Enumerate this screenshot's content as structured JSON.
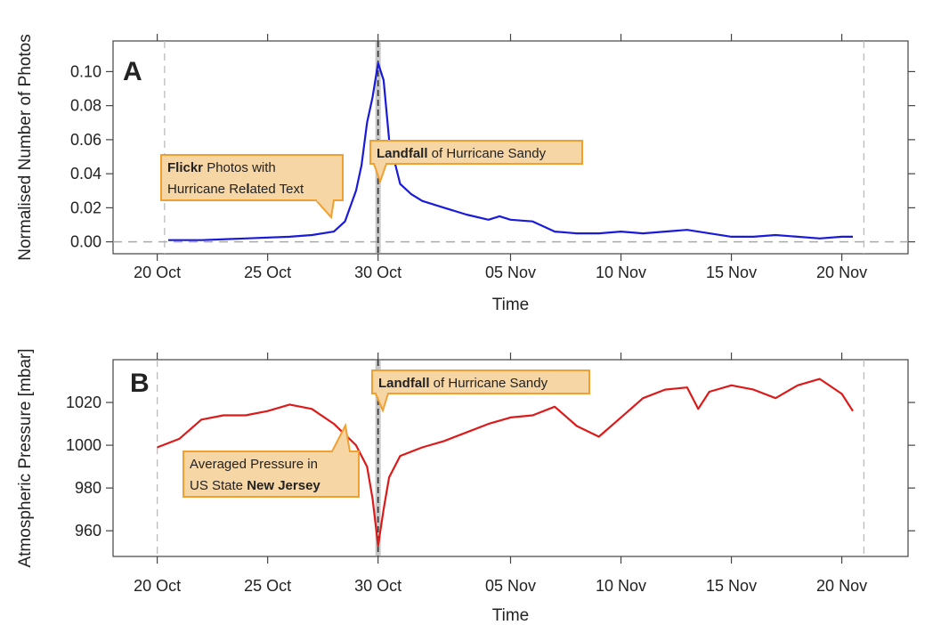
{
  "chart_data": [
    {
      "type": "line",
      "panel_label": "A",
      "xlabel": "Time",
      "ylabel": "Normalised Number of Photos",
      "x_tick_labels": [
        "20 Oct",
        "25 Oct",
        "30 Oct",
        "05 Nov",
        "10 Nov",
        "15 Nov",
        "20 Nov"
      ],
      "x_tick_dates": [
        "2012-10-20",
        "2012-10-25",
        "2012-10-30",
        "2012-11-05",
        "2012-11-10",
        "2012-11-15",
        "2012-11-20"
      ],
      "xlim": [
        "2012-10-18",
        "2012-11-23"
      ],
      "y_ticks": [
        0.0,
        0.02,
        0.04,
        0.06,
        0.08,
        0.1
      ],
      "y_tick_labels": [
        "0.00",
        "0.02",
        "0.04",
        "0.06",
        "0.08",
        "0.10"
      ],
      "ylim": [
        -0.007,
        0.118
      ],
      "line_color": "#1a1adb",
      "series": [
        {
          "x": [
            "2012-10-20 12:00",
            "2012-10-22",
            "2012-10-24",
            "2012-10-26",
            "2012-10-27",
            "2012-10-28",
            "2012-10-28 12:00",
            "2012-10-29",
            "2012-10-29 06:00",
            "2012-10-29 12:00",
            "2012-10-29 18:00",
            "2012-10-30",
            "2012-10-30 06:00",
            "2012-10-30 12:00",
            "2012-10-31",
            "2012-10-31 12:00",
            "2012-11-01",
            "2012-11-02",
            "2012-11-03",
            "2012-11-04",
            "2012-11-04 12:00",
            "2012-11-05",
            "2012-11-06",
            "2012-11-07",
            "2012-11-08",
            "2012-11-09",
            "2012-11-10",
            "2012-11-11",
            "2012-11-12",
            "2012-11-13",
            "2012-11-14",
            "2012-11-15",
            "2012-11-16",
            "2012-11-17",
            "2012-11-18",
            "2012-11-19",
            "2012-11-20",
            "2012-11-20 12:00"
          ],
          "y": [
            0.001,
            0.001,
            0.002,
            0.003,
            0.004,
            0.006,
            0.012,
            0.03,
            0.045,
            0.07,
            0.085,
            0.105,
            0.095,
            0.06,
            0.034,
            0.028,
            0.024,
            0.02,
            0.016,
            0.013,
            0.015,
            0.013,
            0.012,
            0.006,
            0.005,
            0.005,
            0.006,
            0.005,
            0.006,
            0.007,
            0.005,
            0.003,
            0.003,
            0.004,
            0.003,
            0.002,
            0.003,
            0.003
          ]
        }
      ],
      "reference_lines": {
        "horizontal_dashed_y": 0.0,
        "vertical_dashed_dates": [
          "2012-10-20 08:00",
          "2012-11-21"
        ],
        "landfall_date": "2012-10-30"
      },
      "annotations": [
        {
          "lines": [
            [
              {
                "t": "Flickr",
                "b": true
              },
              {
                "t": " Photos with",
                "b": false
              }
            ],
            [
              {
                "t": "Hurricane Re",
                "b": false
              },
              {
                "t": "l",
                "b": true
              },
              {
                "t": "ated Text",
                "b": false
              }
            ]
          ]
        },
        {
          "lines": [
            [
              {
                "t": "Landfall",
                "b": true
              },
              {
                "t": " of Hurricane Sandy",
                "b": false
              }
            ]
          ]
        }
      ]
    },
    {
      "type": "line",
      "panel_label": "B",
      "xlabel": "Time",
      "ylabel": "Atmospheric Pressure [mbar]",
      "x_tick_labels": [
        "20 Oct",
        "25 Oct",
        "30 Oct",
        "05 Nov",
        "10 Nov",
        "15 Nov",
        "20 Nov"
      ],
      "x_tick_dates": [
        "2012-10-20",
        "2012-10-25",
        "2012-10-30",
        "2012-11-05",
        "2012-11-10",
        "2012-11-15",
        "2012-11-20"
      ],
      "xlim": [
        "2012-10-18",
        "2012-11-23"
      ],
      "y_ticks": [
        960,
        980,
        1000,
        1020
      ],
      "y_tick_labels": [
        "960",
        "980",
        "1000",
        "1020"
      ],
      "ylim": [
        948,
        1040
      ],
      "line_color": "#dd1a1a",
      "series": [
        {
          "x": [
            "2012-10-20",
            "2012-10-21",
            "2012-10-22",
            "2012-10-23",
            "2012-10-24",
            "2012-10-25",
            "2012-10-26",
            "2012-10-27",
            "2012-10-28",
            "2012-10-28 12:00",
            "2012-10-29",
            "2012-10-29 12:00",
            "2012-10-29 18:00",
            "2012-10-30",
            "2012-10-30 06:00",
            "2012-10-30 12:00",
            "2012-10-31",
            "2012-11-01",
            "2012-11-02",
            "2012-11-03",
            "2012-11-04",
            "2012-11-05",
            "2012-11-06",
            "2012-11-07",
            "2012-11-08",
            "2012-11-09",
            "2012-11-10",
            "2012-11-11",
            "2012-11-12",
            "2012-11-13",
            "2012-11-13 12:00",
            "2012-11-14",
            "2012-11-15",
            "2012-11-16",
            "2012-11-17",
            "2012-11-18",
            "2012-11-19",
            "2012-11-20",
            "2012-11-20 12:00"
          ],
          "y": [
            999,
            1003,
            1012,
            1014,
            1014,
            1016,
            1019,
            1017,
            1010,
            1005,
            1000,
            990,
            975,
            953,
            970,
            985,
            995,
            999,
            1002,
            1006,
            1010,
            1013,
            1014,
            1018,
            1009,
            1004,
            1013,
            1022,
            1026,
            1027,
            1017,
            1025,
            1028,
            1026,
            1022,
            1028,
            1031,
            1024,
            1016
          ]
        }
      ],
      "reference_lines": {
        "vertical_dashed_dates": [
          "2012-10-20",
          "2012-11-21"
        ],
        "landfall_date": "2012-10-30"
      },
      "annotations": [
        {
          "lines": [
            [
              {
                "t": "Landfall",
                "b": true
              },
              {
                "t": " of Hurricane Sandy",
                "b": false
              }
            ]
          ]
        },
        {
          "lines": [
            [
              {
                "t": "Averaged Pressure in",
                "b": false
              }
            ],
            [
              {
                "t": "US State ",
                "b": false
              },
              {
                "t": "New Jersey",
                "b": true
              }
            ]
          ]
        }
      ]
    }
  ]
}
